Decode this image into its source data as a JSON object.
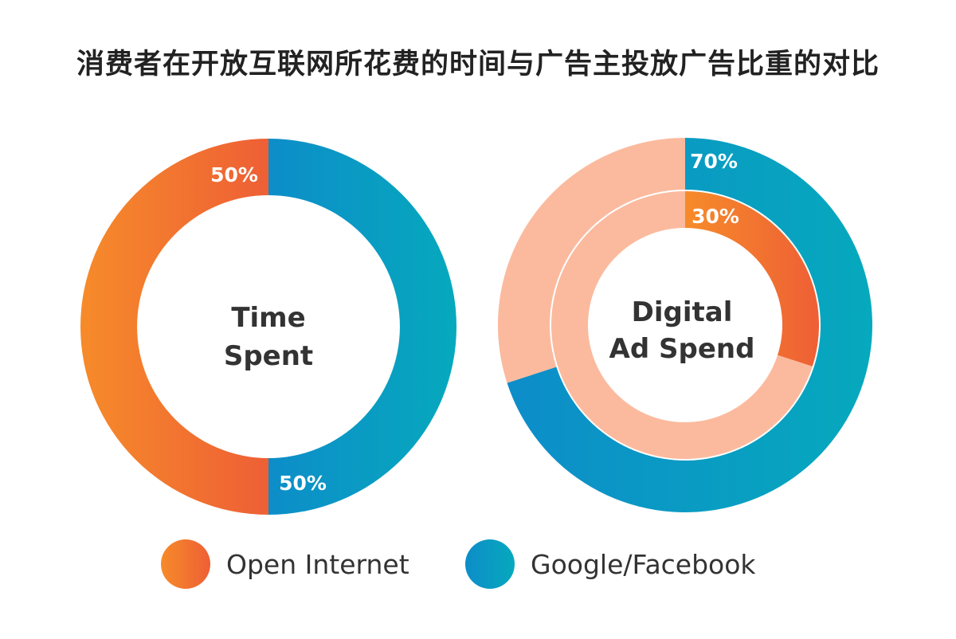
{
  "title": "消费者在开放互联网所花费的时间与广告主投放广告比重的对比",
  "colors": {
    "open_internet_start": "#F68B2A",
    "open_internet_end": "#EE5F35",
    "google_facebook_start": "#0D8DC9",
    "google_facebook_end": "#06A9BD",
    "outer_ring_open": "#FBBA9E",
    "inner_ring_google": "#FBBA9E"
  },
  "chart_data": [
    {
      "type": "pie",
      "center_label": [
        "Time",
        "Spent"
      ],
      "series": [
        {
          "name": "Open Internet",
          "value": 50,
          "label": "50%"
        },
        {
          "name": "Google/Facebook",
          "value": 50,
          "label": "50%"
        }
      ]
    },
    {
      "type": "pie",
      "center_label": [
        "Digital",
        "Ad Spend"
      ],
      "rings": [
        {
          "ring": "outer",
          "highlight": "Google/Facebook",
          "value": 70,
          "label": "70%"
        },
        {
          "ring": "inner",
          "highlight": "Open Internet",
          "value": 30,
          "label": "30%"
        }
      ]
    }
  ],
  "legend": [
    {
      "name": "Open Internet"
    },
    {
      "name": "Google/Facebook"
    }
  ]
}
